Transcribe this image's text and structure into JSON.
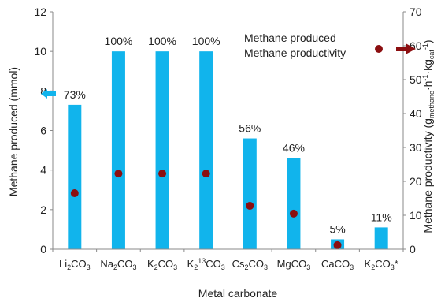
{
  "chart_data": {
    "type": "bar",
    "categories": [
      {
        "base": "Li",
        "sub1": "2",
        "sup": "",
        "mid": "CO",
        "sub2": "3",
        "tail": ""
      },
      {
        "base": "Na",
        "sub1": "2",
        "sup": "",
        "mid": "CO",
        "sub2": "3",
        "tail": ""
      },
      {
        "base": "K",
        "sub1": "2",
        "sup": "",
        "mid": "CO",
        "sub2": "3",
        "tail": ""
      },
      {
        "base": "K",
        "sub1": "2",
        "sup": "13",
        "mid": "CO",
        "sub2": "3",
        "tail": ""
      },
      {
        "base": "Cs",
        "sub1": "2",
        "sup": "",
        "mid": "CO",
        "sub2": "3",
        "tail": ""
      },
      {
        "base": "MgCO",
        "sub1": "",
        "sup": "",
        "mid": "",
        "sub2": "3",
        "tail": ""
      },
      {
        "base": "CaCO",
        "sub1": "",
        "sup": "",
        "mid": "",
        "sub2": "3",
        "tail": ""
      },
      {
        "base": "K",
        "sub1": "2",
        "sup": "",
        "mid": "CO",
        "sub2": "3",
        "tail": "*"
      }
    ],
    "series": [
      {
        "name": "Methane produced",
        "type": "bar",
        "axis": "left",
        "color": "#11b4ec",
        "values": [
          7.3,
          10.0,
          10.0,
          10.0,
          5.6,
          4.6,
          0.5,
          1.1
        ]
      },
      {
        "name": "Methane productivity",
        "type": "scatter",
        "axis": "right",
        "color": "#8b0e10",
        "values": [
          16.5,
          22.3,
          22.3,
          22.3,
          12.8,
          10.5,
          1.2,
          null
        ]
      }
    ],
    "bar_labels": [
      "73%",
      "100%",
      "100%",
      "100%",
      "56%",
      "46%",
      "5%",
      "11%"
    ],
    "xlabel": "Metal carbonate",
    "ylabel": "Methane produced (mmol)",
    "y2label": {
      "main": "Methane productivity (g",
      "s1": "methane",
      "m1": "·h",
      "p1": "-1",
      "m2": "·kg",
      "s2": "cat",
      "p2": "-1",
      "end": ")"
    },
    "ylim": [
      0,
      12
    ],
    "yticks": [
      "0",
      "2",
      "4",
      "6",
      "8",
      "10",
      "12"
    ],
    "y2lim": [
      0,
      70
    ],
    "y2ticks": [
      "0",
      "10",
      "20",
      "30",
      "40",
      "50",
      "60",
      "70"
    ],
    "legend_position": "top-right",
    "axis_indicators": {
      "left_arrow_color": "#11b4ec",
      "right_arrow_color": "#8b0e10"
    }
  }
}
